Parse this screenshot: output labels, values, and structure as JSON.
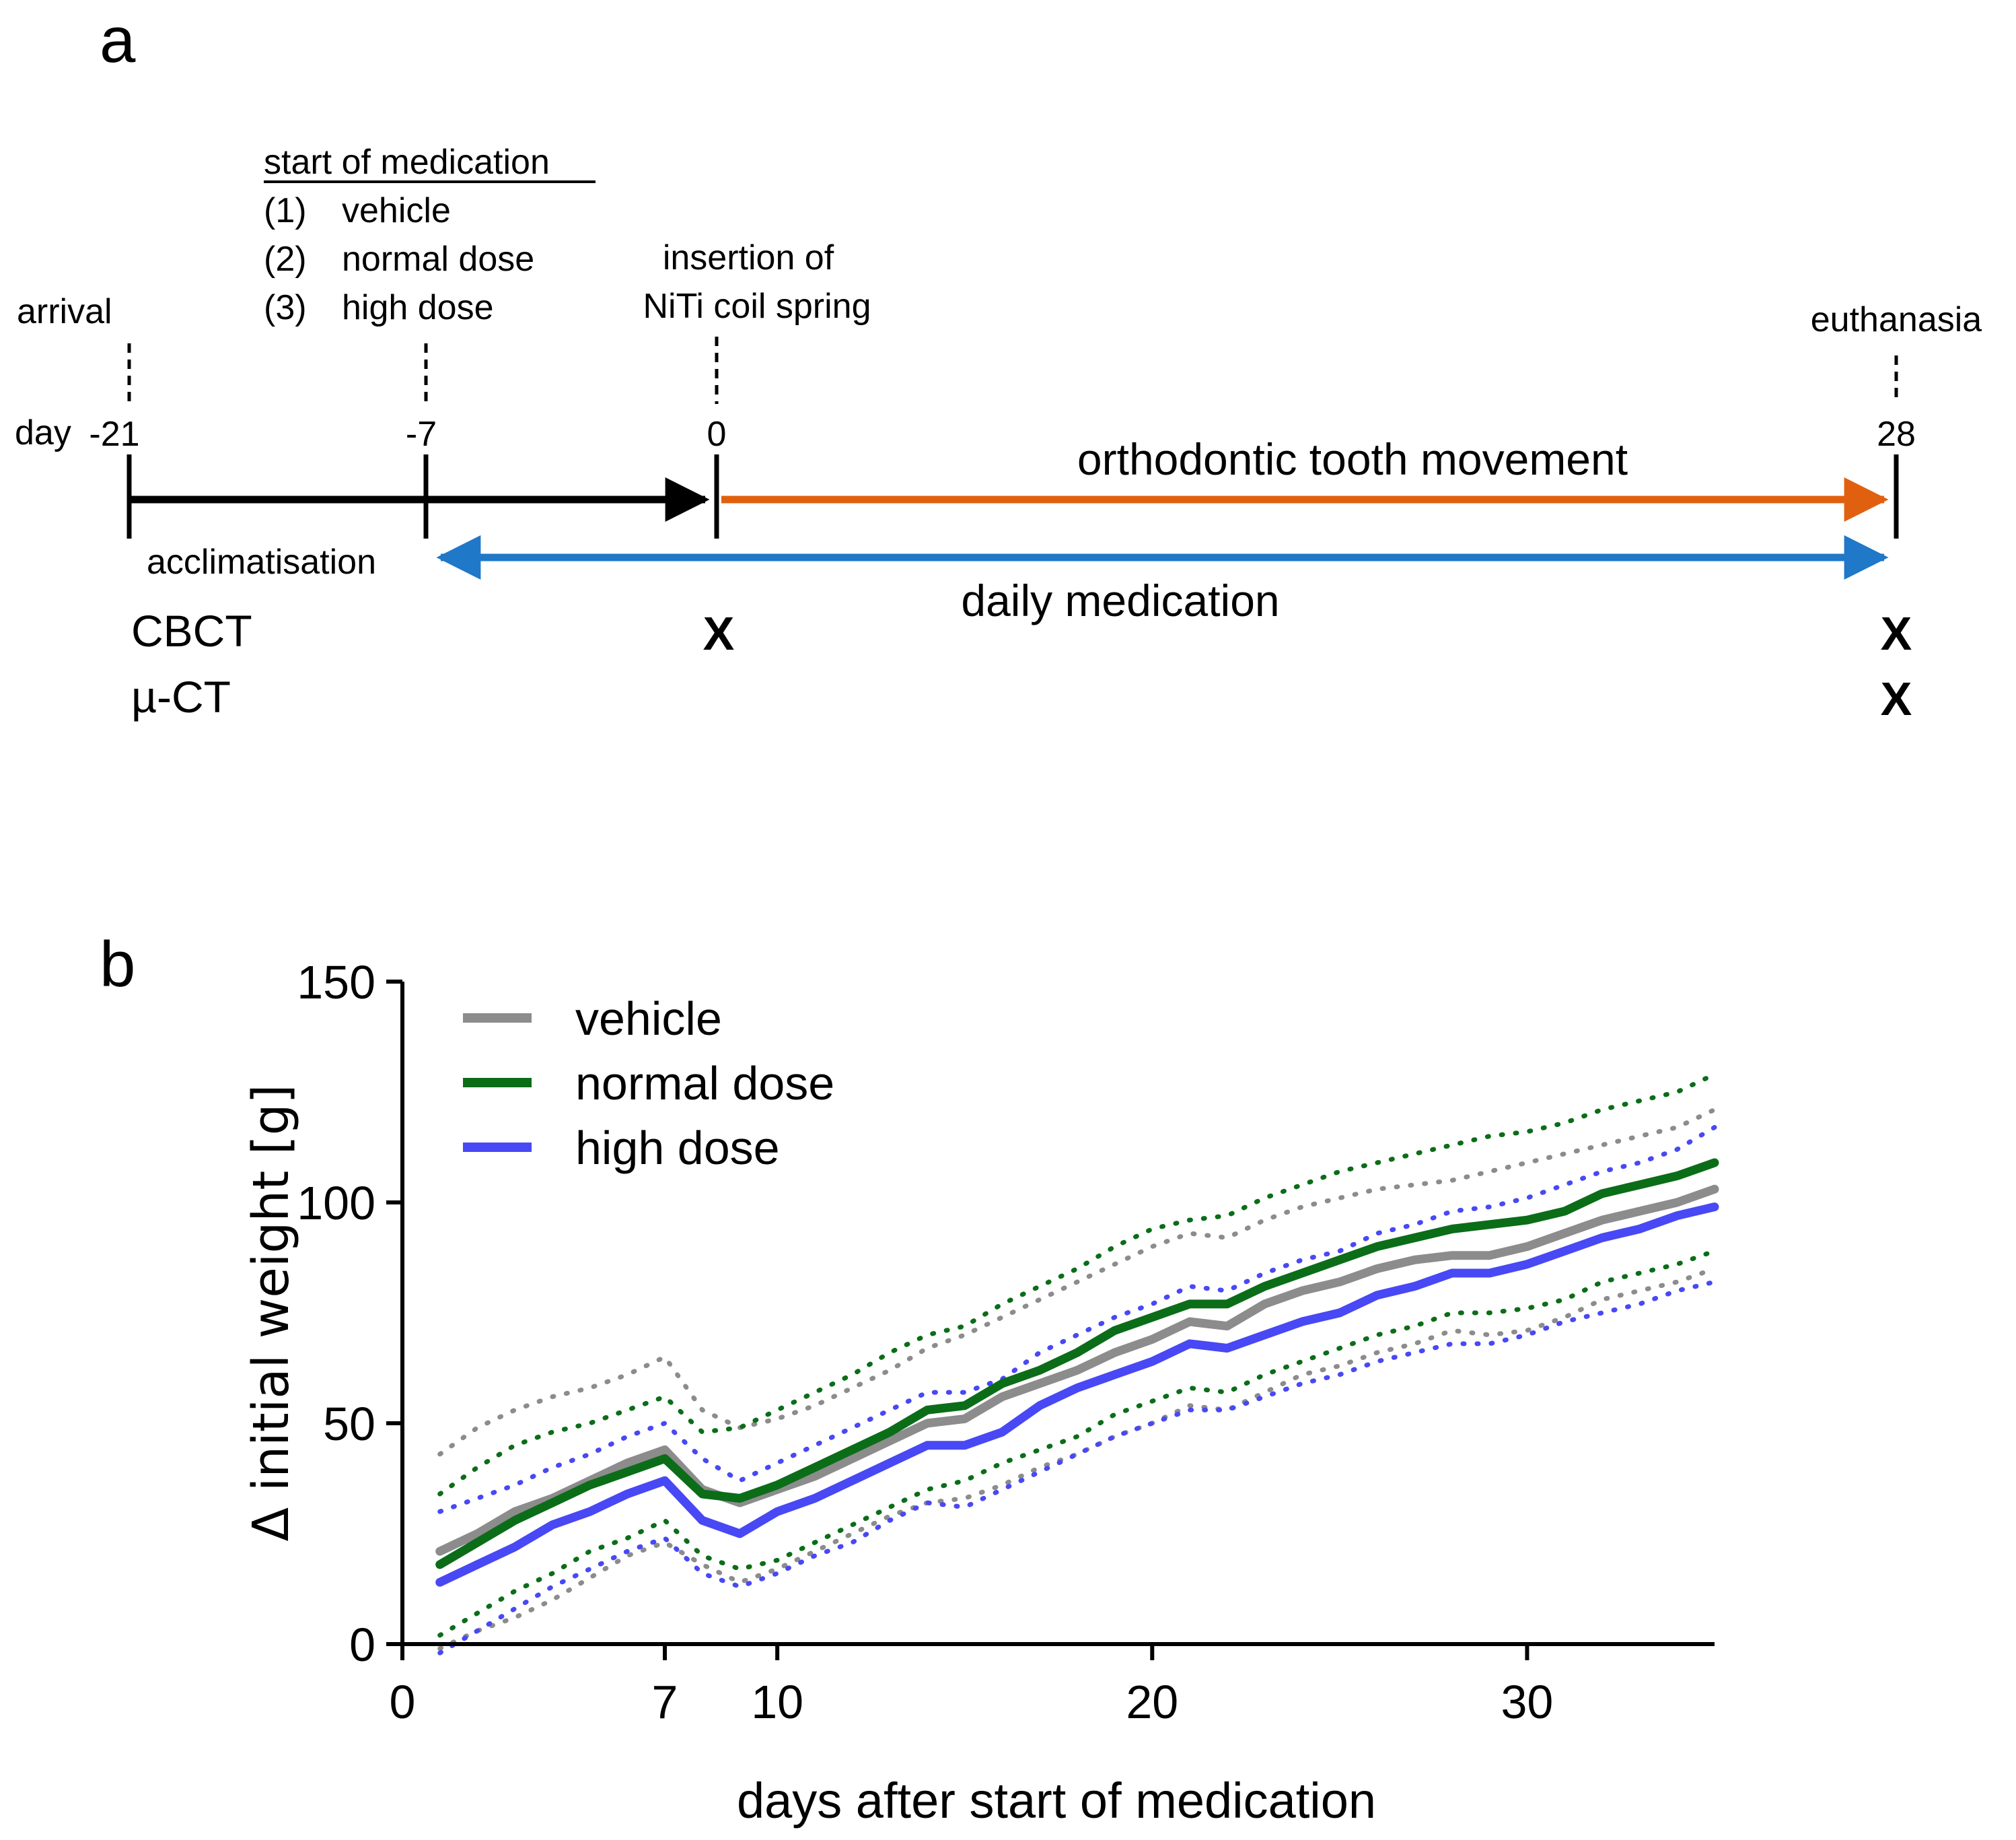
{
  "panel_a": {
    "letter": "a",
    "medication_heading": "start of medication",
    "medication_list": [
      {
        "num": "(1)",
        "label": "vehicle"
      },
      {
        "num": "(2)",
        "label": "normal dose"
      },
      {
        "num": "(3)",
        "label": "high dose"
      }
    ],
    "events": {
      "arrival": "arrival",
      "insertion_line1": "insertion of",
      "insertion_line2": "NiTi coil spring",
      "euthanasia": "euthanasia"
    },
    "day_prefix": "day",
    "day_ticks": [
      "-21",
      "-7",
      "0",
      "28"
    ],
    "phases": {
      "acclimatisation": "acclimatisation",
      "otm": "orthodontic tooth movement",
      "medication": "daily medication"
    },
    "imaging": {
      "cbct_label": "CBCT",
      "muct_label": "µ-CT",
      "mark": "X"
    },
    "colors": {
      "black": "#000000",
      "orange": "#e0600f",
      "blue": "#1f78c8",
      "green": "#4cae3c",
      "purple": "#7b2a9c"
    }
  },
  "panel_b": {
    "letter": "b"
  },
  "chart_data": {
    "type": "line",
    "xlabel": "days after start of medication",
    "ylabel": "Δ initial weight [g]",
    "xlim": [
      0,
      35
    ],
    "ylim": [
      0,
      150
    ],
    "xticks": [
      0,
      7,
      10,
      20,
      30
    ],
    "yticks": [
      0,
      50,
      100,
      150
    ],
    "legend": "top-left",
    "x": [
      1,
      2,
      3,
      4,
      5,
      6,
      7,
      8,
      9,
      10,
      11,
      12,
      13,
      14,
      15,
      16,
      17,
      18,
      19,
      20,
      21,
      22,
      23,
      24,
      25,
      26,
      27,
      28,
      29,
      30,
      31,
      32,
      33,
      34,
      35
    ],
    "series": [
      {
        "name": "vehicle",
        "color": "#8c8c8c",
        "values": [
          21,
          25,
          30,
          33,
          37,
          41,
          44,
          35,
          32,
          35,
          38,
          42,
          46,
          50,
          51,
          56,
          59,
          62,
          66,
          69,
          73,
          72,
          77,
          80,
          82,
          85,
          87,
          88,
          88,
          90,
          93,
          96,
          98,
          100,
          103
        ],
        "upper": [
          43,
          49,
          53,
          56,
          58,
          61,
          65,
          53,
          49,
          51,
          54,
          58,
          62,
          67,
          70,
          74,
          78,
          82,
          86,
          90,
          93,
          92,
          96,
          99,
          101,
          103,
          104,
          105,
          107,
          109,
          111,
          113,
          115,
          117,
          121
        ],
        "lower": [
          -1,
          3,
          6,
          10,
          15,
          20,
          23,
          18,
          14,
          17,
          21,
          25,
          29,
          32,
          33,
          36,
          40,
          43,
          47,
          50,
          54,
          53,
          57,
          61,
          63,
          66,
          68,
          71,
          70,
          71,
          74,
          78,
          80,
          82,
          85
        ]
      },
      {
        "name": "normal dose",
        "color": "#0b6d18",
        "values": [
          18,
          23,
          28,
          32,
          36,
          39,
          42,
          34,
          33,
          36,
          40,
          44,
          48,
          53,
          54,
          59,
          62,
          66,
          71,
          74,
          77,
          77,
          81,
          84,
          87,
          90,
          92,
          94,
          95,
          96,
          98,
          102,
          104,
          106,
          109
        ],
        "upper": [
          34,
          40,
          45,
          48,
          50,
          53,
          56,
          48,
          49,
          53,
          57,
          61,
          66,
          70,
          72,
          77,
          81,
          85,
          90,
          94,
          96,
          97,
          101,
          104,
          107,
          109,
          111,
          113,
          115,
          116,
          118,
          121,
          123,
          125,
          129
        ],
        "lower": [
          2,
          7,
          12,
          16,
          21,
          24,
          28,
          20,
          17,
          19,
          23,
          27,
          31,
          35,
          37,
          41,
          44,
          47,
          52,
          55,
          58,
          57,
          61,
          64,
          67,
          70,
          72,
          75,
          75,
          76,
          78,
          82,
          84,
          86,
          89
        ]
      },
      {
        "name": "high dose",
        "color": "#4848f5",
        "values": [
          14,
          18,
          22,
          27,
          30,
          34,
          37,
          28,
          25,
          30,
          33,
          37,
          41,
          45,
          45,
          48,
          54,
          58,
          61,
          64,
          68,
          67,
          70,
          73,
          75,
          79,
          81,
          84,
          84,
          86,
          89,
          92,
          94,
          97,
          99
        ],
        "upper": [
          30,
          33,
          36,
          40,
          43,
          47,
          50,
          42,
          37,
          41,
          45,
          49,
          53,
          57,
          57,
          60,
          66,
          70,
          74,
          77,
          81,
          80,
          84,
          87,
          89,
          93,
          95,
          98,
          99,
          101,
          104,
          107,
          109,
          112,
          117
        ],
        "lower": [
          -2,
          3,
          8,
          13,
          17,
          21,
          24,
          16,
          13,
          16,
          20,
          23,
          28,
          32,
          31,
          35,
          39,
          43,
          47,
          50,
          53,
          53,
          56,
          59,
          61,
          64,
          66,
          68,
          68,
          70,
          73,
          75,
          77,
          80,
          82
        ]
      }
    ]
  }
}
